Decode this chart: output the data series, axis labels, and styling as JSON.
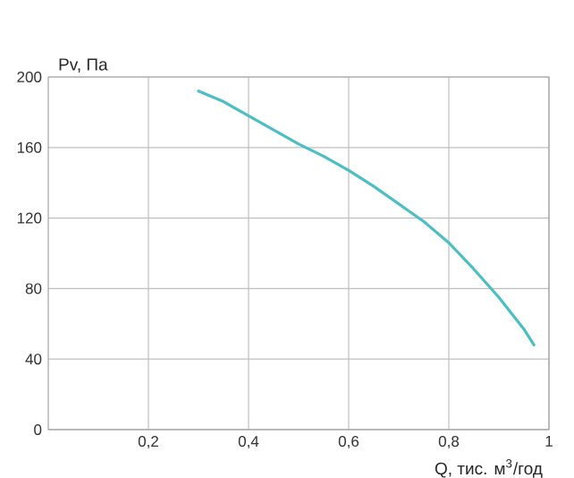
{
  "chart_data": {
    "type": "line",
    "xlabel": "Q, тис. м$^{3}$/год",
    "ylabel": "Pv, Па",
    "x": [
      0.3,
      0.35,
      0.4,
      0.45,
      0.5,
      0.55,
      0.6,
      0.65,
      0.7,
      0.75,
      0.8,
      0.85,
      0.9,
      0.95,
      0.97
    ],
    "series": [
      {
        "color": "#4cbfc4",
        "values": [
          192,
          186,
          178,
          170,
          162,
          155,
          147,
          138,
          128,
          118,
          106,
          91,
          75,
          57,
          48
        ]
      }
    ],
    "xlim": [
      0,
      1
    ],
    "ylim": [
      0,
      200
    ],
    "xticks": [
      {
        "value": 0.2,
        "label": "0,2"
      },
      {
        "value": 0.4,
        "label": "0,4"
      },
      {
        "value": 0.6,
        "label": "0,6"
      },
      {
        "value": 0.8,
        "label": "0,8"
      },
      1
    ],
    "yticks": [
      0,
      40,
      80,
      120,
      160,
      200
    ],
    "grid": true,
    "marker": "none",
    "line_style": "solid"
  }
}
